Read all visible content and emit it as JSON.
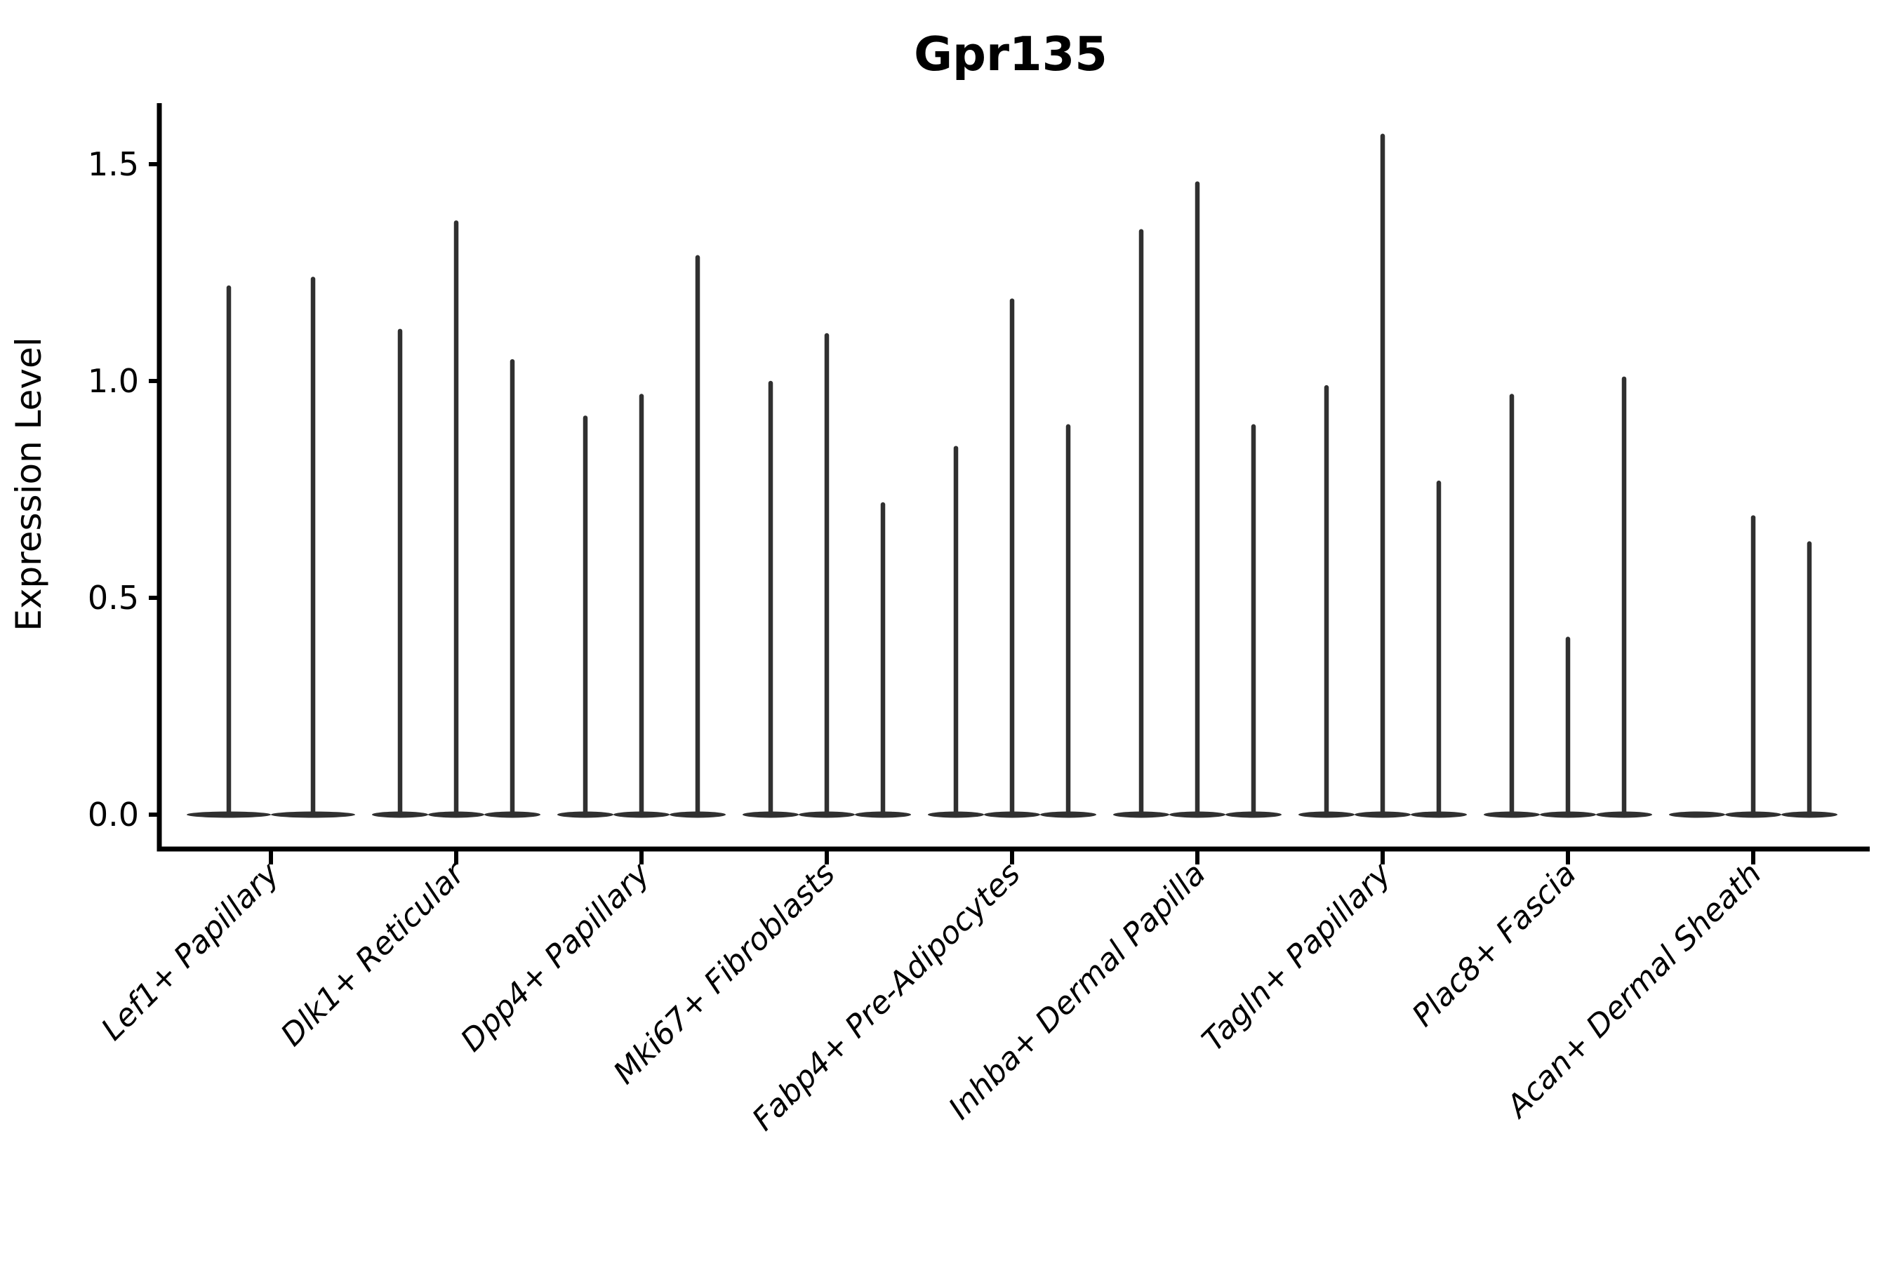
{
  "title": "Gpr135",
  "y_axis": {
    "label": "Expression Level",
    "tick_labels": [
      "0.0",
      "0.5",
      "1.0",
      "1.5"
    ],
    "tick_values": [
      0.0,
      0.5,
      1.0,
      1.5
    ]
  },
  "x_axis": {
    "categories": [
      "Lef1+ Papillary",
      "Dlk1+ Reticular",
      "Dpp4+ Papillary",
      "Mki67+ Fibroblasts",
      "Fabp4+ Pre-Adipocytes",
      "Inhba+ Dermal Papilla",
      "Tagln+ Papillary",
      "Plac8+ Fascia",
      "Acan+ Dermal Sheath"
    ]
  },
  "colors": {
    "violin": "#303030",
    "axis": "#000000",
    "text": "#000000",
    "background": "#ffffff"
  },
  "chart_data": {
    "type": "violin",
    "title": "Gpr135",
    "xlabel": "",
    "ylabel": "Expression Level",
    "ylim": [
      -0.08,
      1.64
    ],
    "ytick_values": [
      0.0,
      0.5,
      1.0,
      1.5
    ],
    "ytick_labels": [
      "0.0",
      "0.5",
      "1.0",
      "1.5"
    ],
    "grid": false,
    "legend_position": "none",
    "description": "Thin violin plots of zero-inflated expression; each violin renders as a flattened base blob at 0 plus a narrow spike up to its maximum expression value. A maximum of 0 means the violin is flat (base only, no spike).",
    "categories": [
      "Lef1+ Papillary",
      "Dlk1+ Reticular",
      "Dpp4+ Papillary",
      "Mki67+ Fibroblasts",
      "Fabp4+ Pre-Adipocytes",
      "Inhba+ Dermal Papilla",
      "Tagln+ Papillary",
      "Plac8+ Fascia",
      "Acan+ Dermal Sheath"
    ],
    "series": [
      {
        "category": "Lef1+ Papillary",
        "violin_maxima": [
          1.22,
          1.24
        ]
      },
      {
        "category": "Dlk1+ Reticular",
        "violin_maxima": [
          1.12,
          1.37,
          1.05
        ]
      },
      {
        "category": "Dpp4+ Papillary",
        "violin_maxima": [
          0.92,
          0.97,
          1.29
        ]
      },
      {
        "category": "Mki67+ Fibroblasts",
        "violin_maxima": [
          1.0,
          1.11,
          0.72
        ]
      },
      {
        "category": "Fabp4+ Pre-Adipocytes",
        "violin_maxima": [
          0.85,
          1.19,
          0.9
        ]
      },
      {
        "category": "Inhba+ Dermal Papilla",
        "violin_maxima": [
          1.35,
          1.46,
          0.9
        ]
      },
      {
        "category": "Tagln+ Papillary",
        "violin_maxima": [
          0.99,
          1.57,
          0.77
        ]
      },
      {
        "category": "Plac8+ Fascia",
        "violin_maxima": [
          0.97,
          0.41,
          1.01
        ]
      },
      {
        "category": "Acan+ Dermal Sheath",
        "violin_maxima": [
          0.0,
          0.69,
          0.63
        ]
      }
    ]
  }
}
